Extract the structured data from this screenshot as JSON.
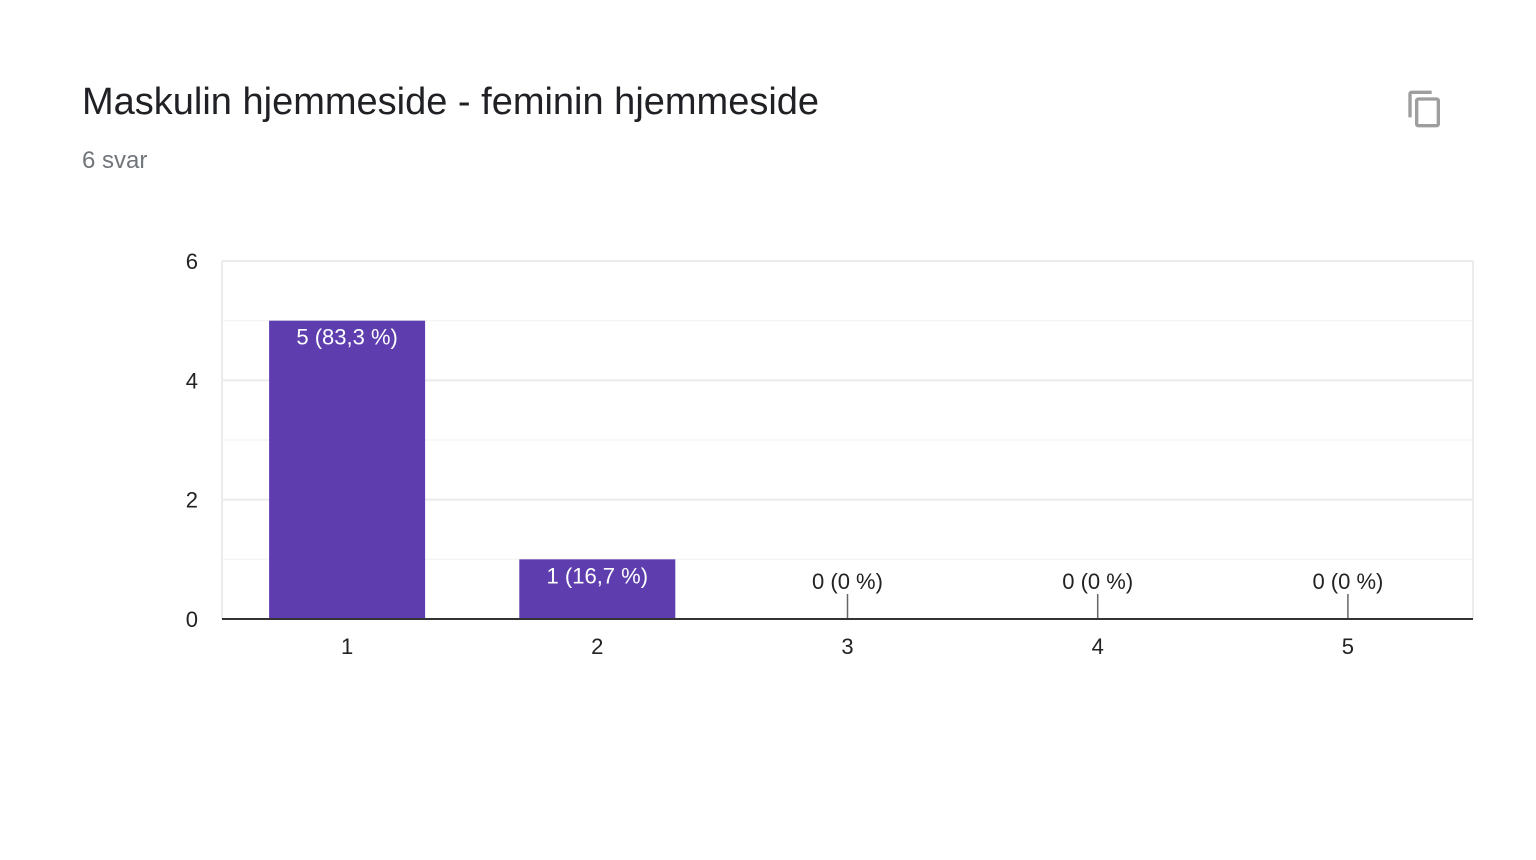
{
  "card": {
    "title": "Maskulin hjemmeside - feminin hjemmeside",
    "subtitle": "6 svar",
    "copy_icon": "copy-icon"
  },
  "colors": {
    "bar": "#5e3eae",
    "gridline": "#ebebeb",
    "minor_gridline": "#f5f5f5",
    "axis": "#333333",
    "label_inside": "#ffffff",
    "label_outside": "#222222",
    "icon": "#9e9e9e"
  },
  "chart_data": {
    "type": "bar",
    "categories": [
      "1",
      "2",
      "3",
      "4",
      "5"
    ],
    "values": [
      5,
      1,
      0,
      0,
      0
    ],
    "data_labels": [
      "5 (83,3 %)",
      "1 (16,7 %)",
      "0 (0 %)",
      "0 (0 %)",
      "0 (0 %)"
    ],
    "ylim": [
      0,
      6
    ],
    "yticks": [
      0,
      2,
      4,
      6
    ],
    "y_minor_ticks": [
      1,
      3,
      5
    ],
    "xlabel": "",
    "ylabel": "",
    "grid": true
  }
}
